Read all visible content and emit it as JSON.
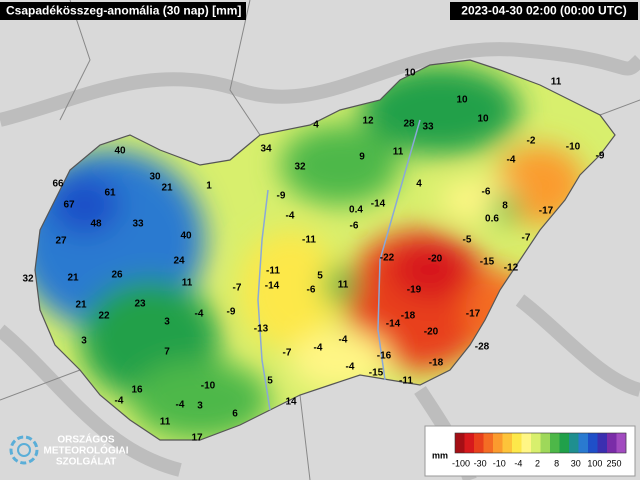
{
  "header": {
    "title": "Csapadékösszeg-anomália (30 nap) [mm]",
    "timestamp": "2023-04-30 02:00 (00:00 UTC)"
  },
  "stations": [
    10,
    11,
    10,
    10,
    4,
    12,
    28,
    33,
    -2,
    -10,
    -9,
    34,
    40,
    9,
    11,
    32,
    -4,
    30,
    21,
    1,
    66,
    61,
    4,
    -6,
    67,
    -9,
    -14,
    8,
    -17,
    0.4,
    0.6,
    48,
    33,
    -4,
    -6,
    -7,
    27,
    40,
    -11,
    -5,
    -22,
    -20,
    -15,
    -12,
    24,
    -11,
    5,
    32,
    21,
    26,
    11,
    -7,
    -14,
    -6,
    11,
    -19,
    21,
    23,
    -4,
    -9,
    -14,
    -18,
    -17,
    22,
    3,
    -13,
    -20,
    3,
    7,
    -7,
    -4,
    -4,
    -16,
    -18,
    -28,
    -4,
    -15,
    -11,
    5,
    -10,
    16,
    -4,
    -4,
    3,
    14,
    6,
    11,
    17
  ],
  "legend": {
    "unit": "mm",
    "labels": [
      -100,
      -30,
      -10,
      -4,
      2,
      8,
      30,
      100,
      250
    ],
    "colors": [
      "#a50f15",
      "#d7191c",
      "#e8401c",
      "#f46d24",
      "#fb9b2e",
      "#fdc33a",
      "#fde84a",
      "#fff685",
      "#d8ef6d",
      "#9ed85a",
      "#4db848",
      "#20a04a",
      "#1f8f8f",
      "#2a7ad0",
      "#1f4fc8",
      "#3b2fb0",
      "#7a2ca8",
      "#a24bc0"
    ]
  },
  "logo": {
    "lines": [
      "ORSZÁGOS",
      "METEOROLÓGIAI",
      "SZOLGÁLAT"
    ]
  }
}
